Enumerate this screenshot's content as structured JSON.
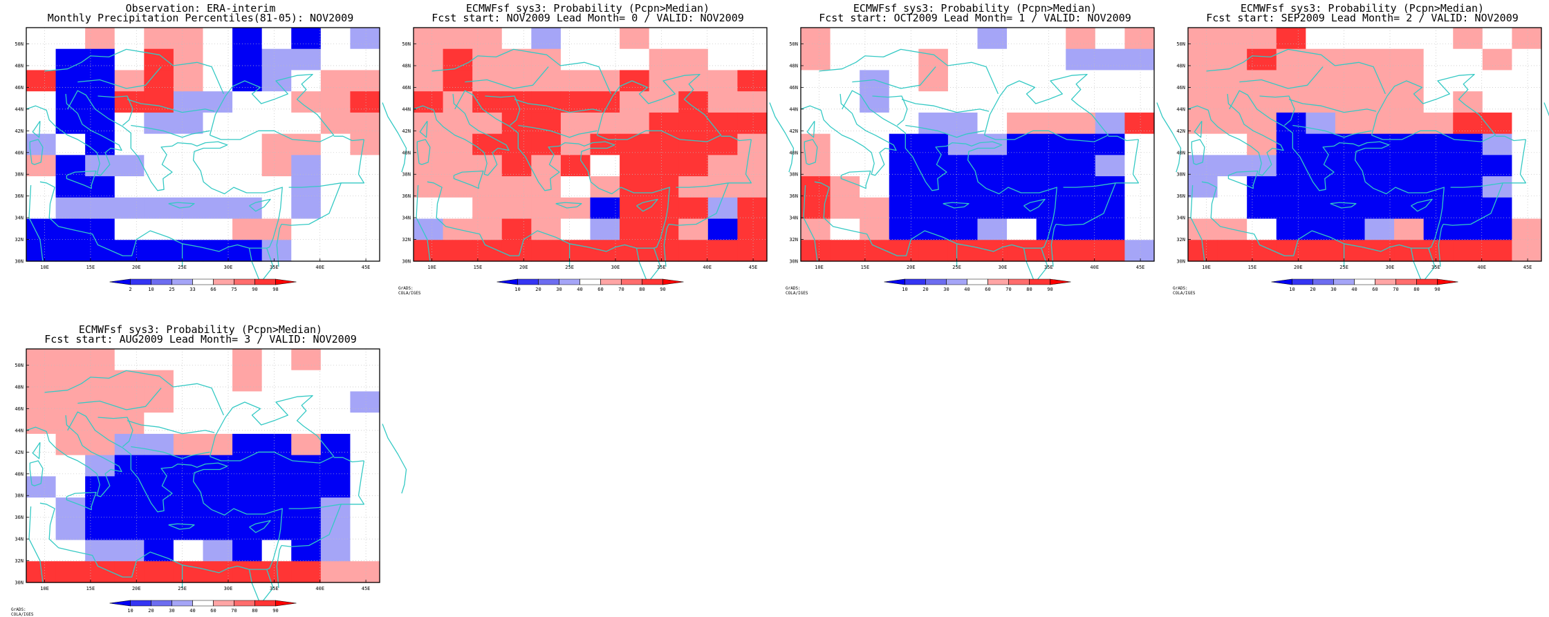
{
  "colors": {
    "coast": "#34c9c4",
    "frame": "#000000",
    "grid": "#bfbfbf",
    "palette_lightblue": "#a5a5f7",
    "palette_blue": "#0000f5"
  },
  "credit_text": "GrADS: COLA/IGES",
  "lat_labels": [
    "50N",
    "48N",
    "46N",
    "44N",
    "42N",
    "40N",
    "38N",
    "36N",
    "34N",
    "32N",
    "30N"
  ],
  "lon_labels": [
    "10E",
    "15E",
    "20E",
    "25E",
    "30E",
    "35E",
    "40E",
    "45E"
  ],
  "panels": [
    {
      "title1": "Observation: ERA-interim",
      "title2": "Monthly Precipitation Percentiles(81-05): NOV2009",
      "colorbar": {
        "labels": [
          "2",
          "10",
          "25",
          "33",
          "66",
          "75",
          "90",
          "98"
        ],
        "colors": [
          "#0000f5",
          "#3535f3",
          "#6d6df0",
          "#a5a5f7",
          "#ffffff",
          "#ffa5a5",
          "#ff6d6d",
          "#ff3535",
          "#ff0000"
        ]
      },
      "grid": [
        "wwrwrrwbwbwa",
        "wbbwRrwbaaww",
        "RbbrRrwbawrr",
        "wbbRRaawwrrR",
        "wbbwaawwwwrr",
        "awbwwwwwrrwr",
        "rbaawwwwraww",
        "wbbwwwwwwaww",
        "waaaaaaawaww",
        "bbbwwwwrrwww",
        "bbbbbbbbawww"
      ],
      "credit": false
    },
    {
      "title1": "ECMWFsf sys3: Probability (Pcpn>Median)",
      "title2": "Fcst start: NOV2009  Lead Month= 0 / VALID: NOV2009",
      "colorbar": {
        "labels": [
          "10",
          "20",
          "30",
          "40",
          "60",
          "70",
          "80",
          "90"
        ],
        "colors": [
          "#0000f5",
          "#3535f3",
          "#6d6df0",
          "#a5a5f7",
          "#ffffff",
          "#ffa5a5",
          "#ff6d6d",
          "#ff3535",
          "#ff0000"
        ]
      },
      "grid": [
        "rrrwawwrwwww",
        "rRrrrwwwrrww",
        "rRrrrrrRrrrR",
        "RrRRRRRrrRrr",
        "rrrRRrrrRRRR",
        "rrRRRrRRRRRr",
        "rrrRrRwRRRrr",
        "rrrrrwrRRrrr",
        "wwrrrrbRRRaR",
        "arrRrwaRRrbR",
        "RRRRRRRRRRRR"
      ],
      "credit": true
    },
    {
      "title1": "ECMWFsf sys3: Probability (Pcpn>Median)",
      "title2": "Fcst start: OCT2009  Lead Month= 1 / VALID: NOV2009",
      "colorbar": {
        "labels": [
          "10",
          "20",
          "30",
          "40",
          "60",
          "70",
          "80",
          "90"
        ],
        "colors": [
          "#0000f5",
          "#3535f3",
          "#6d6df0",
          "#a5a5f7",
          "#ffffff",
          "#ffa5a5",
          "#ff6d6d",
          "#ff3535",
          "#ff0000"
        ]
      },
      "grid": [
        "rwwwwwawwrwr",
        "rwwwrwwwwaaa",
        "wwawrwwwwwww",
        "wwawwwwwwwww",
        "wwwwaawrrraR",
        "rwwbbaabbbbw",
        "rwwbbbbbbbaw",
        "Rrwbbbbbbbbw",
        "Rrrbbbbbbbbw",
        "rwrbbbawbbbw",
        "RRRRRRRRRRRa"
      ],
      "credit": true
    },
    {
      "title1": "ECMWFsf sys3: Probability (Pcpn>Median)",
      "title2": "Fcst start: SEP2009  Lead Month= 2 / VALID: NOV2009",
      "colorbar": {
        "labels": [
          "10",
          "20",
          "30",
          "40",
          "60",
          "70",
          "80",
          "90"
        ],
        "colors": [
          "#0000f5",
          "#3535f3",
          "#6d6df0",
          "#a5a5f7",
          "#ffffff",
          "#ffa5a5",
          "#ff6d6d",
          "#ff3535",
          "#ff0000"
        ]
      },
      "grid": [
        "rrrRwwwwwrwr",
        "rrRrrrrrwwrw",
        "rrrrrrrrwwww",
        "rrrrrrrrwrww",
        "rrrbarrrrRRw",
        "wwrbbbbbbbaw",
        "aaabbbbbbbbw",
        "awbbbbbbbbaw",
        "wwbbbbbbbbbw",
        "rrwbbbarbbbr",
        "RRRRRRRRRRRr"
      ],
      "credit": true
    },
    {
      "title1": "ECMWFsf sys3: Probability (Pcpn>Median)",
      "title2": "Fcst start: AUG2009  Lead Month= 3 / VALID: NOV2009",
      "colorbar": {
        "labels": [
          "10",
          "20",
          "30",
          "40",
          "60",
          "70",
          "80",
          "90"
        ],
        "colors": [
          "#0000f5",
          "#3535f3",
          "#6d6df0",
          "#a5a5f7",
          "#ffffff",
          "#ffa5a5",
          "#ff6d6d",
          "#ff3535",
          "#ff0000"
        ]
      },
      "grid": [
        "rrrwwwwrwrww",
        "rrrrrwwrwwww",
        "rrrrrwwwwwwa",
        "rrrrwwwwwwww",
        "wrraarrbbrbw",
        "wwabbbbbbbbw",
        "awbbbbbbbbbw",
        "wabbbbbbbbaw",
        "wabbbbbbbbaw",
        "wwaabwabwbaw",
        "RRRRRRRRRRrr"
      ],
      "credit": true
    }
  ]
}
